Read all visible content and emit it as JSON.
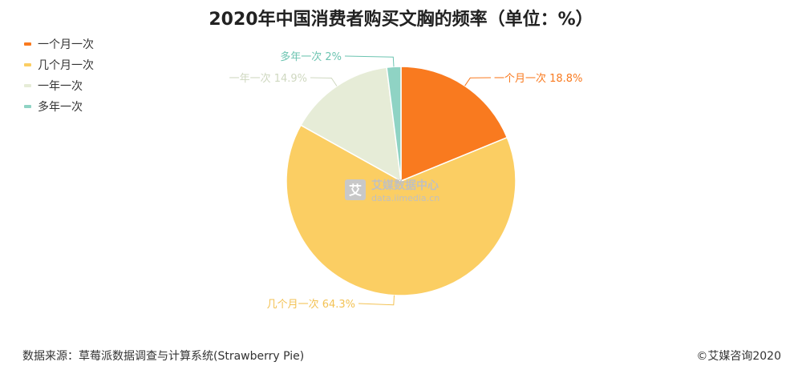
{
  "chart_data": {
    "type": "pie",
    "title": "2020年中国消费者购买文胸的频率（单位：%）",
    "categories": [
      "一个月一次",
      "几个月一次",
      "一年一次",
      "多年一次"
    ],
    "values": [
      18.8,
      64.3,
      14.9,
      2
    ],
    "colors": [
      "#f97a1f",
      "#fbce63",
      "#e6ecd7",
      "#8fd3c4"
    ],
    "data_labels": [
      "一个月一次 18.8%",
      "几个月一次 64.3%",
      "一年一次 14.9%",
      "多年一次 2%"
    ],
    "label_colors": [
      "#f97a1f",
      "#f3c254",
      "#cfd8c0",
      "#6cc4b1"
    ],
    "legend_position": "top-left",
    "start_angle": "12 o'clock",
    "direction": "clockwise"
  },
  "watermark": {
    "logo_char": "艾",
    "name": "艾媒数据中心",
    "url": "data.iimedia.cn"
  },
  "footer": {
    "source": "数据来源：草莓派数据调查与计算系统(Strawberry Pie)",
    "copyright": "©艾媒咨询2020"
  }
}
